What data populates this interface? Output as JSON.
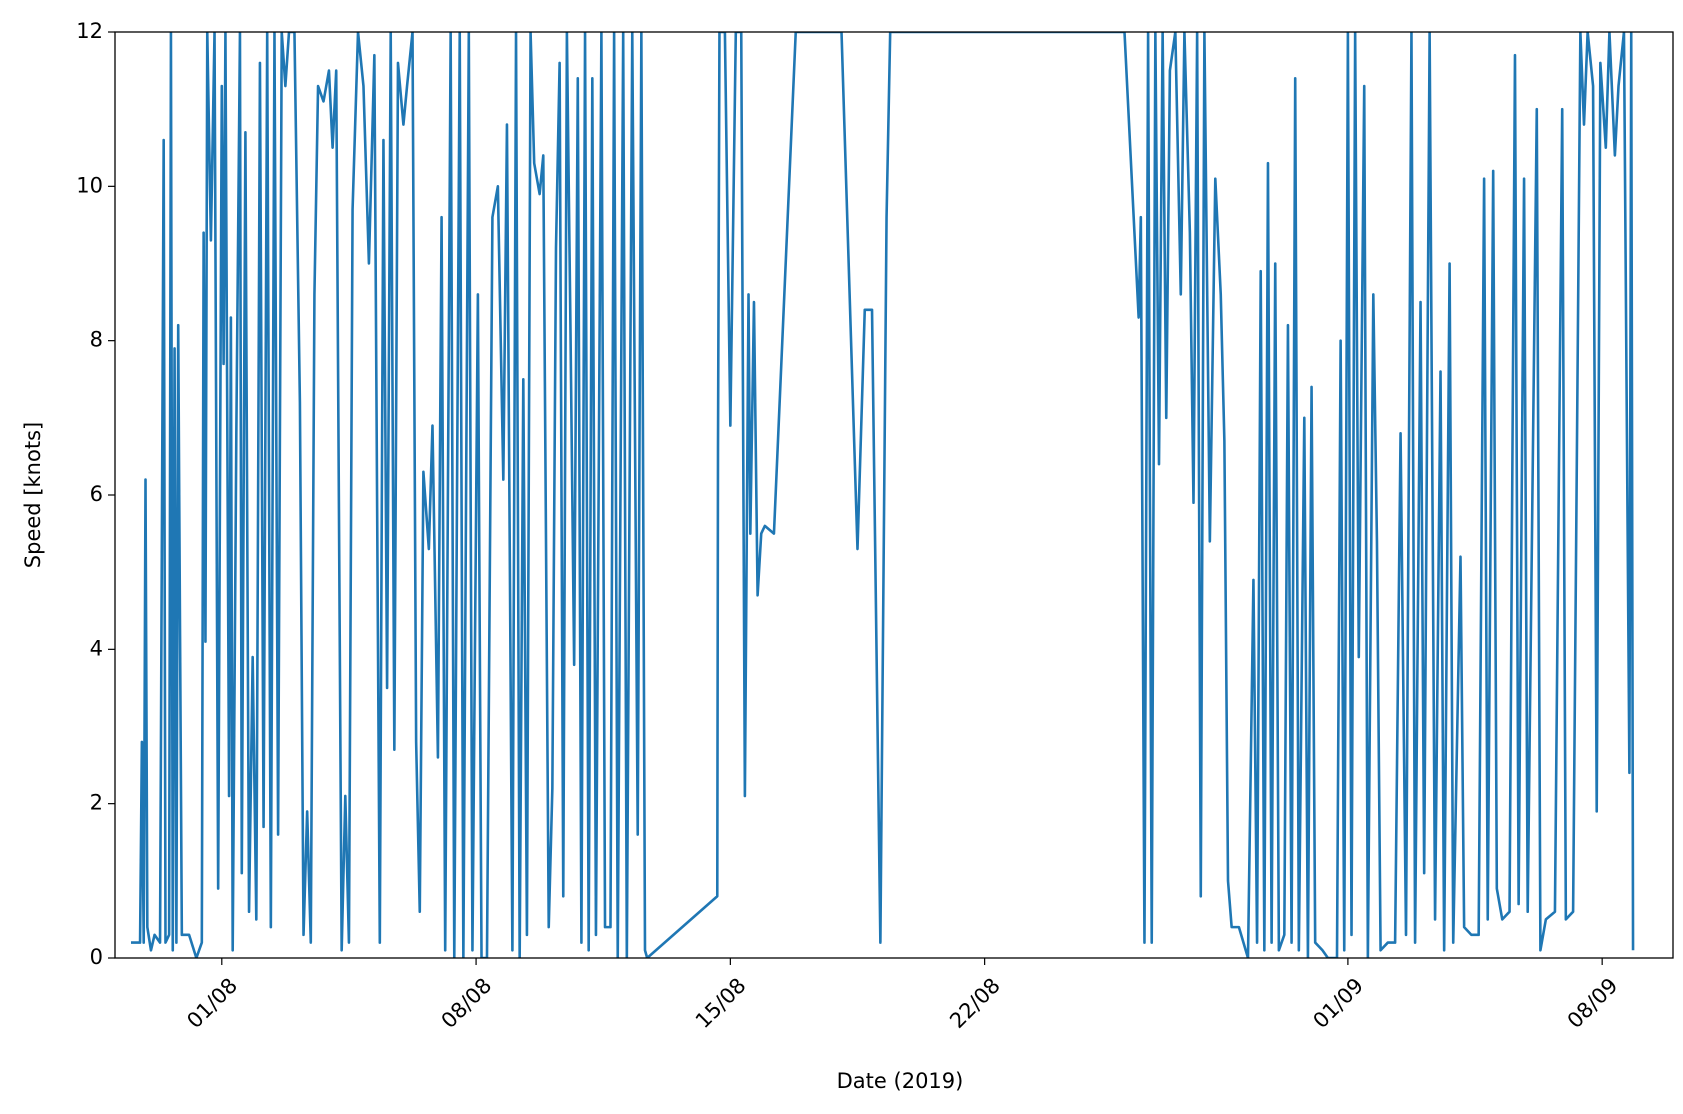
{
  "chart_data": {
    "type": "line",
    "xlabel": "Date (2019)",
    "ylabel": "Speed [knots]",
    "color": "#1f77b4",
    "xlim": [
      -2.94,
      39.95
    ],
    "ylim": [
      0,
      12
    ],
    "xticks": [
      {
        "value": 0,
        "label": "01/08"
      },
      {
        "value": 7,
        "label": "08/08"
      },
      {
        "value": 14,
        "label": "15/08"
      },
      {
        "value": 21,
        "label": "22/08"
      },
      {
        "value": 31,
        "label": "01/09"
      },
      {
        "value": 38,
        "label": "08/09"
      }
    ],
    "yticks": [
      0,
      2,
      4,
      6,
      8,
      10,
      12
    ],
    "x": [
      -2.5,
      -2.25,
      -2.2,
      -2.15,
      -2.1,
      -2.05,
      -1.95,
      -1.85,
      -1.7,
      -1.6,
      -1.55,
      -1.45,
      -1.4,
      -1.35,
      -1.3,
      -1.25,
      -1.2,
      -1.1,
      -0.9,
      -0.7,
      -0.55,
      -0.5,
      -0.45,
      -0.4,
      -0.3,
      -0.2,
      -0.1,
      0,
      0.05,
      0.1,
      0.2,
      0.25,
      0.3,
      0.4,
      0.5,
      0.55,
      0.65,
      0.75,
      0.85,
      0.95,
      1.05,
      1.15,
      1.25,
      1.35,
      1.45,
      1.55,
      1.65,
      1.75,
      1.85,
      2.0,
      2.15,
      2.25,
      2.35,
      2.45,
      2.55,
      2.65,
      2.8,
      2.95,
      3.05,
      3.15,
      3.3,
      3.4,
      3.5,
      3.6,
      3.75,
      3.9,
      4.05,
      4.2,
      4.35,
      4.45,
      4.55,
      4.65,
      4.75,
      4.85,
      5.0,
      5.1,
      5.25,
      5.35,
      5.45,
      5.55,
      5.7,
      5.8,
      5.95,
      6.05,
      6.15,
      6.3,
      6.4,
      6.55,
      6.65,
      6.8,
      6.9,
      7.05,
      7.15,
      7.3,
      7.45,
      7.6,
      7.75,
      7.85,
      8.0,
      8.1,
      8.2,
      8.3,
      8.4,
      8.5,
      8.6,
      8.75,
      8.85,
      9.0,
      9.1,
      9.2,
      9.3,
      9.4,
      9.5,
      9.6,
      9.7,
      9.8,
      9.9,
      10.0,
      10.1,
      10.2,
      10.3,
      10.45,
      10.55,
      10.7,
      10.8,
      10.9,
      11.05,
      11.15,
      11.3,
      11.45,
      11.55,
      11.65,
      11.71,
      13.64,
      13.66,
      13.7,
      13.85,
      14.0,
      14.15,
      14.3,
      14.4,
      14.5,
      14.55,
      14.65,
      14.75,
      14.85,
      14.95,
      15.2,
      15.8,
      17.06,
      17.5,
      17.7,
      17.9,
      18.13,
      18.3,
      18.4,
      24.85,
      25.24,
      25.3,
      25.4,
      25.5,
      25.6,
      25.7,
      25.8,
      25.9,
      26.0,
      26.1,
      26.25,
      26.4,
      26.5,
      26.65,
      26.75,
      26.85,
      26.95,
      27.05,
      27.2,
      27.35,
      27.5,
      27.6,
      27.7,
      27.8,
      28.0,
      28.25,
      28.4,
      28.5,
      28.6,
      28.7,
      28.8,
      28.9,
      29.0,
      29.1,
      29.25,
      29.35,
      29.45,
      29.55,
      29.65,
      29.8,
      29.9,
      30.0,
      30.1,
      30.3,
      30.45,
      30.7,
      30.8,
      30.9,
      31.0,
      31.1,
      31.2,
      31.3,
      31.45,
      31.55,
      31.7,
      31.8,
      31.9,
      32.1,
      32.3,
      32.45,
      32.6,
      32.75,
      32.85,
      33.0,
      33.1,
      33.25,
      33.4,
      33.55,
      33.65,
      33.8,
      33.9,
      34.1,
      34.2,
      34.4,
      34.6,
      34.75,
      34.85,
      35.0,
      35.1,
      35.25,
      35.45,
      35.6,
      35.7,
      35.85,
      35.95,
      36.2,
      36.3,
      36.45,
      36.7,
      36.9,
      37.0,
      37.2,
      37.4,
      37.5,
      37.6,
      37.75,
      37.85,
      37.95,
      38.1,
      38.2,
      38.35,
      38.45,
      38.6,
      38.75,
      38.8,
      38.85
    ],
    "values": [
      0.2,
      0.2,
      2.8,
      0.2,
      6.2,
      0.4,
      0.1,
      0.3,
      0.2,
      10.6,
      0.2,
      0.3,
      12,
      0.1,
      7.9,
      0.2,
      8.2,
      0.3,
      0.3,
      0,
      0.2,
      9.4,
      4.1,
      12,
      9.3,
      12,
      0.9,
      11.3,
      7.7,
      12,
      2.1,
      8.3,
      0.1,
      6.8,
      12,
      1.1,
      10.7,
      0.6,
      3.9,
      0.5,
      11.6,
      1.7,
      12,
      0.4,
      12,
      1.6,
      12,
      11.3,
      12,
      12,
      7.2,
      0.3,
      1.9,
      0.2,
      8.6,
      11.3,
      11.1,
      11.5,
      10.5,
      11.5,
      0.1,
      2.1,
      0.2,
      9.7,
      12,
      11.3,
      9.0,
      11.7,
      0.2,
      10.6,
      3.5,
      12,
      2.7,
      11.6,
      10.8,
      11.3,
      12,
      2.8,
      0.6,
      6.3,
      5.3,
      6.9,
      2.6,
      9.6,
      0.1,
      12,
      0,
      12,
      0,
      12,
      0.1,
      8.6,
      0,
      0,
      9.6,
      10.0,
      6.2,
      10.8,
      0.1,
      12,
      0,
      7.5,
      0.3,
      12,
      10.3,
      9.9,
      10.4,
      0.4,
      2.2,
      9.2,
      11.6,
      0.8,
      12,
      8.1,
      3.8,
      11.4,
      0.2,
      12,
      0.1,
      11.4,
      0.3,
      12,
      0.4,
      0.4,
      12,
      0,
      12,
      0,
      12,
      1.6,
      12,
      0.1,
      0,
      0.8,
      6.6,
      12,
      12,
      6.9,
      12,
      12,
      2.1,
      8.6,
      5.5,
      8.5,
      4.7,
      5.5,
      5.6,
      5.5,
      12,
      12,
      5.3,
      8.4,
      8.4,
      0.2,
      9.6,
      12,
      12,
      8.3,
      9.6,
      0.2,
      12,
      0.2,
      12,
      6.4,
      12,
      7.0,
      11.5,
      12,
      8.6,
      12,
      9.4,
      5.9,
      12,
      0.8,
      12,
      5.4,
      10.1,
      8.6,
      6.7,
      1.0,
      0.4,
      0.4,
      0,
      4.9,
      0.2,
      8.9,
      0.1,
      10.3,
      0.2,
      9.0,
      0.1,
      0.3,
      8.2,
      0.2,
      11.4,
      0.1,
      7.0,
      0,
      7.4,
      0.2,
      0.1,
      0,
      0,
      8.0,
      0.1,
      12,
      0.3,
      12,
      3.9,
      11.3,
      0,
      8.6,
      5.4,
      0.1,
      0.2,
      0.2,
      6.8,
      0.3,
      12,
      0.2,
      8.5,
      1.1,
      12,
      0.5,
      7.6,
      0.1,
      9.0,
      0.2,
      5.2,
      0.4,
      0.3,
      0.3,
      10.1,
      0.5,
      10.2,
      0.9,
      0.5,
      0.6,
      11.7,
      0.7,
      10.1,
      0.6,
      11.0,
      0.1,
      0.5,
      0.6,
      11.0,
      0.5,
      0.6,
      12,
      10.8,
      12,
      11.3,
      1.9,
      11.6,
      10.5,
      12,
      10.4,
      11.3,
      12,
      2.4,
      12,
      0.1
    ]
  }
}
